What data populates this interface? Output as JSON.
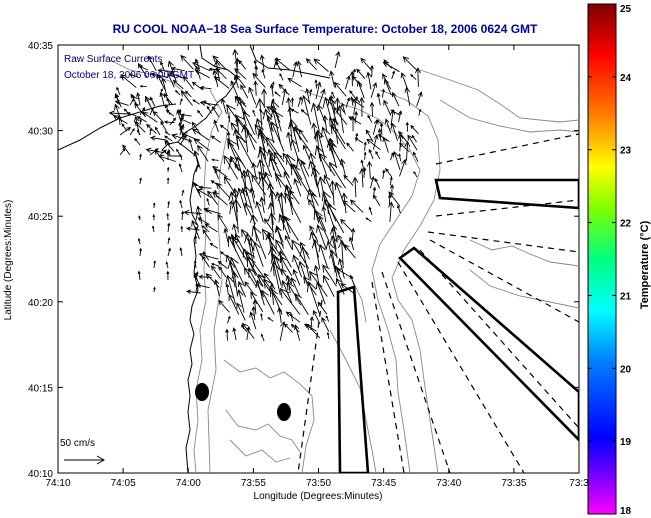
{
  "title": "RU COOL  NOAA−18  Sea Surface Temperature:  October 18, 2006 0624 GMT",
  "annotation": {
    "line1": "Raw Surface Currents",
    "line2": "October 18, 2006 06:00 GMT"
  },
  "scale_arrow_label": "50 cm/s",
  "axes": {
    "xlabel": "Longitude (Degrees:Minutes)",
    "ylabel": "Latitude (Degrees:Minutes)",
    "x_ticks": [
      "74:10",
      "74:05",
      "74:00",
      "73:55",
      "73:50",
      "73:45",
      "73:40",
      "73:35",
      "73:3"
    ],
    "y_ticks": [
      "40:35",
      "40:30",
      "40:25",
      "40:20",
      "40:15",
      "40:10"
    ]
  },
  "colorbar": {
    "label": "Temperature (°C)",
    "ticks": [
      "25",
      "24",
      "23",
      "22",
      "21",
      "20",
      "19",
      "18"
    ],
    "range": [
      18,
      25
    ],
    "colormap": "jet"
  },
  "colors": {
    "title": "#0000a0",
    "annotation": "#000080",
    "land_contour": "#000000",
    "bathymetry_contour": "#888888"
  }
}
